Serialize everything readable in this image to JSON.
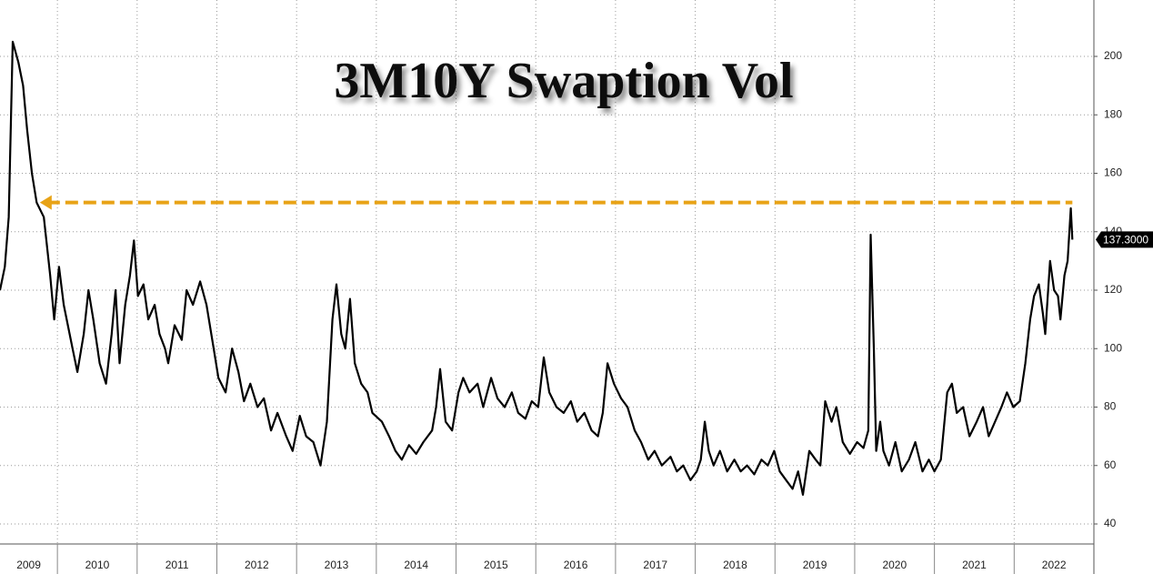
{
  "chart_data": {
    "type": "line",
    "title": "3M10Y Swaption Vol",
    "color": "#000000",
    "x": [
      2009.28,
      2009.34,
      2009.39,
      2009.44,
      2009.51,
      2009.57,
      2009.62,
      2009.68,
      2009.74,
      2009.83,
      2009.91,
      2009.96,
      2010.02,
      2010.08,
      2010.19,
      2010.25,
      2010.33,
      2010.39,
      2010.45,
      2010.53,
      2010.61,
      2010.68,
      2010.73,
      2010.78,
      2010.85,
      2010.91,
      2010.96,
      2011.01,
      2011.08,
      2011.14,
      2011.22,
      2011.28,
      2011.35,
      2011.39,
      2011.47,
      2011.56,
      2011.62,
      2011.7,
      2011.79,
      2011.87,
      2011.96,
      2012.02,
      2012.11,
      2012.19,
      2012.27,
      2012.34,
      2012.42,
      2012.51,
      2012.59,
      2012.68,
      2012.76,
      2012.87,
      2012.95,
      2013.04,
      2013.12,
      2013.21,
      2013.3,
      2013.38,
      2013.45,
      2013.5,
      2013.56,
      2013.61,
      2013.67,
      2013.73,
      2013.81,
      2013.89,
      2013.95,
      2014.07,
      2014.16,
      2014.24,
      2014.32,
      2014.41,
      2014.5,
      2014.59,
      2014.7,
      2014.75,
      2014.8,
      2014.87,
      2014.95,
      2015.03,
      2015.09,
      2015.17,
      2015.27,
      2015.34,
      2015.44,
      2015.52,
      2015.61,
      2015.7,
      2015.78,
      2015.87,
      2015.95,
      2016.03,
      2016.1,
      2016.17,
      2016.26,
      2016.35,
      2016.44,
      2016.52,
      2016.61,
      2016.7,
      2016.78,
      2016.84,
      2016.9,
      2016.98,
      2017.07,
      2017.15,
      2017.24,
      2017.32,
      2017.41,
      2017.49,
      2017.58,
      2017.69,
      2017.77,
      2017.85,
      2017.94,
      2018.02,
      2018.07,
      2018.12,
      2018.17,
      2018.23,
      2018.31,
      2018.4,
      2018.49,
      2018.57,
      2018.65,
      2018.74,
      2018.83,
      2018.91,
      2018.99,
      2019.06,
      2019.14,
      2019.22,
      2019.29,
      2019.35,
      2019.43,
      2019.51,
      2019.57,
      2019.63,
      2019.71,
      2019.77,
      2019.85,
      2019.94,
      2020.03,
      2020.11,
      2020.17,
      2020.2,
      2020.24,
      2020.27,
      2020.32,
      2020.36,
      2020.43,
      2020.51,
      2020.59,
      2020.68,
      2020.76,
      2020.85,
      2020.93,
      2021.0,
      2021.08,
      2021.16,
      2021.22,
      2021.28,
      2021.36,
      2021.44,
      2021.53,
      2021.61,
      2021.68,
      2021.76,
      2021.84,
      2021.91,
      2021.99,
      2022.07,
      2022.14,
      2022.2,
      2022.25,
      2022.31,
      2022.36,
      2022.39,
      2022.45,
      2022.5,
      2022.55,
      2022.58,
      2022.63,
      2022.67,
      2022.71,
      2022.73
    ],
    "values": [
      120,
      128,
      145,
      205,
      198,
      190,
      175,
      160,
      150,
      145,
      125,
      110,
      128,
      115,
      100,
      92,
      105,
      120,
      110,
      95,
      88,
      105,
      120,
      95,
      115,
      125,
      137,
      118,
      122,
      110,
      115,
      105,
      100,
      95,
      108,
      103,
      120,
      115,
      123,
      115,
      100,
      90,
      85,
      100,
      92,
      82,
      88,
      80,
      83,
      72,
      78,
      70,
      65,
      77,
      70,
      68,
      60,
      75,
      110,
      122,
      105,
      100,
      117,
      95,
      88,
      85,
      78,
      75,
      70,
      65,
      62,
      67,
      64,
      68,
      72,
      80,
      93,
      75,
      72,
      85,
      90,
      85,
      88,
      80,
      90,
      83,
      80,
      85,
      78,
      76,
      82,
      80,
      97,
      85,
      80,
      78,
      82,
      75,
      78,
      72,
      70,
      78,
      95,
      88,
      83,
      80,
      72,
      68,
      62,
      65,
      60,
      63,
      58,
      60,
      55,
      58,
      62,
      75,
      65,
      60,
      65,
      58,
      62,
      58,
      60,
      57,
      62,
      60,
      65,
      58,
      55,
      52,
      58,
      50,
      65,
      62,
      60,
      82,
      75,
      80,
      68,
      64,
      68,
      66,
      72,
      139,
      100,
      65,
      75,
      65,
      60,
      68,
      58,
      62,
      68,
      58,
      62,
      58,
      62,
      85,
      88,
      78,
      80,
      70,
      75,
      80,
      70,
      75,
      80,
      85,
      80,
      82,
      95,
      110,
      118,
      122,
      112,
      105,
      130,
      120,
      118,
      110,
      125,
      130,
      148,
      137.3
    ],
    "xlim": [
      2009.28,
      2023
    ],
    "ylim": [
      33.15,
      219.3
    ],
    "xticks": [
      2009,
      2010,
      2011,
      2012,
      2013,
      2014,
      2015,
      2016,
      2017,
      2018,
      2019,
      2020,
      2021,
      2022
    ],
    "yticks": [
      40,
      60,
      80,
      100,
      120,
      140,
      160,
      180,
      200
    ],
    "grid": true,
    "last_value_label": {
      "value": 137.3,
      "label": "137.3000"
    },
    "reference_line": {
      "value": 150,
      "color": "#e8a317",
      "x": [
        2009.78,
        2022.73
      ]
    }
  }
}
